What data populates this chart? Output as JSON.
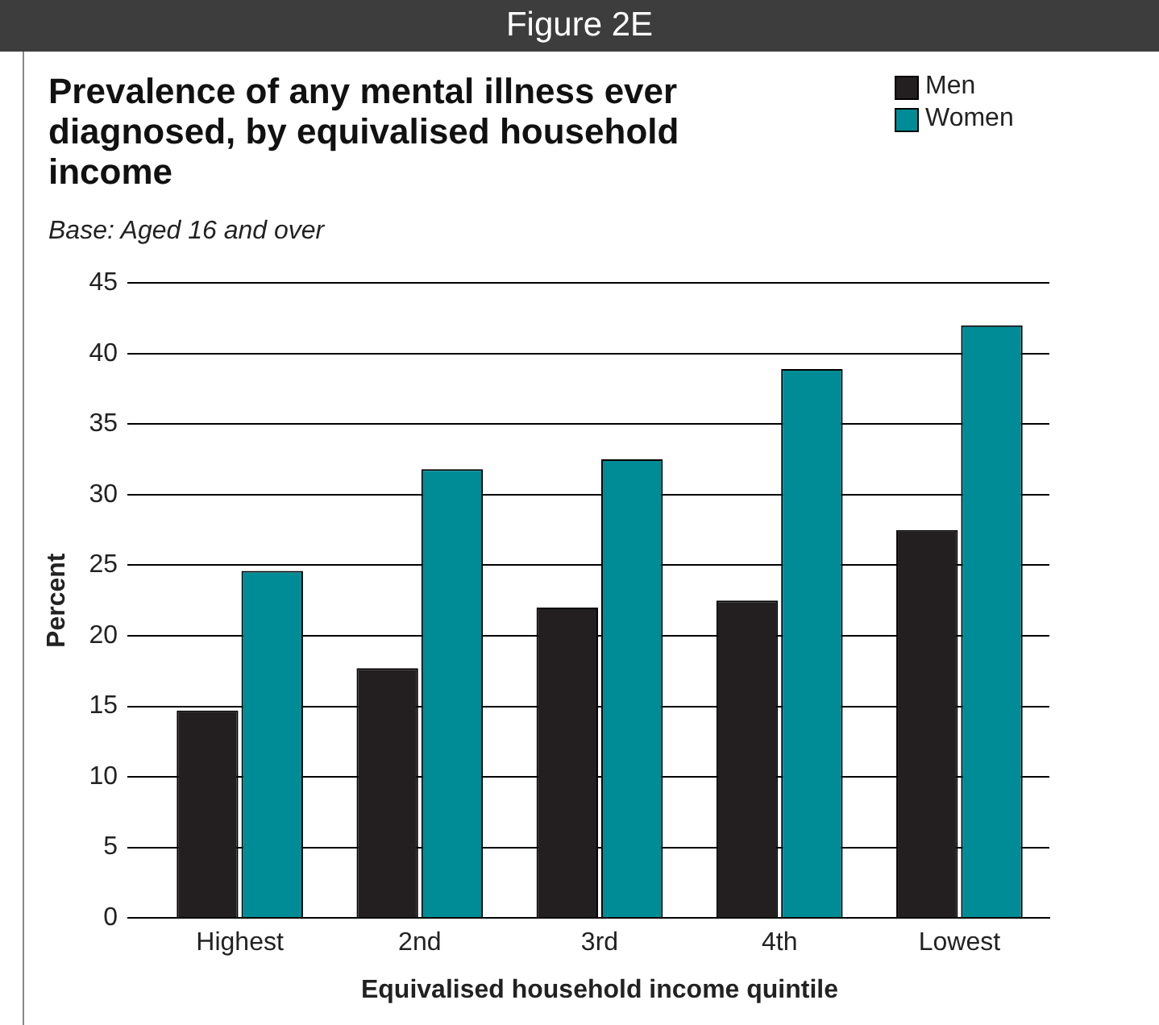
{
  "chart_data": {
    "type": "bar",
    "title": "Figure 2E",
    "subtitle": "Prevalence of any mental illness ever diagnosed, by equivalised household income",
    "annotations": [
      "Base: Aged 16 and over"
    ],
    "xlabel": "Equivalised household income quintile",
    "ylabel": "Percent",
    "categories": [
      "Highest",
      "2nd",
      "3rd",
      "4th",
      "Lowest"
    ],
    "series": [
      {
        "name": "Men",
        "color": "#231f20",
        "values": [
          14.7,
          17.7,
          22.0,
          22.5,
          27.5
        ]
      },
      {
        "name": "Women",
        "color": "#008c96",
        "values": [
          24.6,
          31.8,
          32.5,
          38.9,
          42.0
        ]
      }
    ],
    "ylim": [
      0,
      45
    ],
    "yticks": [
      0,
      5,
      10,
      15,
      20,
      25,
      30,
      35,
      40,
      45
    ],
    "grid": "y",
    "legend": "top right"
  }
}
